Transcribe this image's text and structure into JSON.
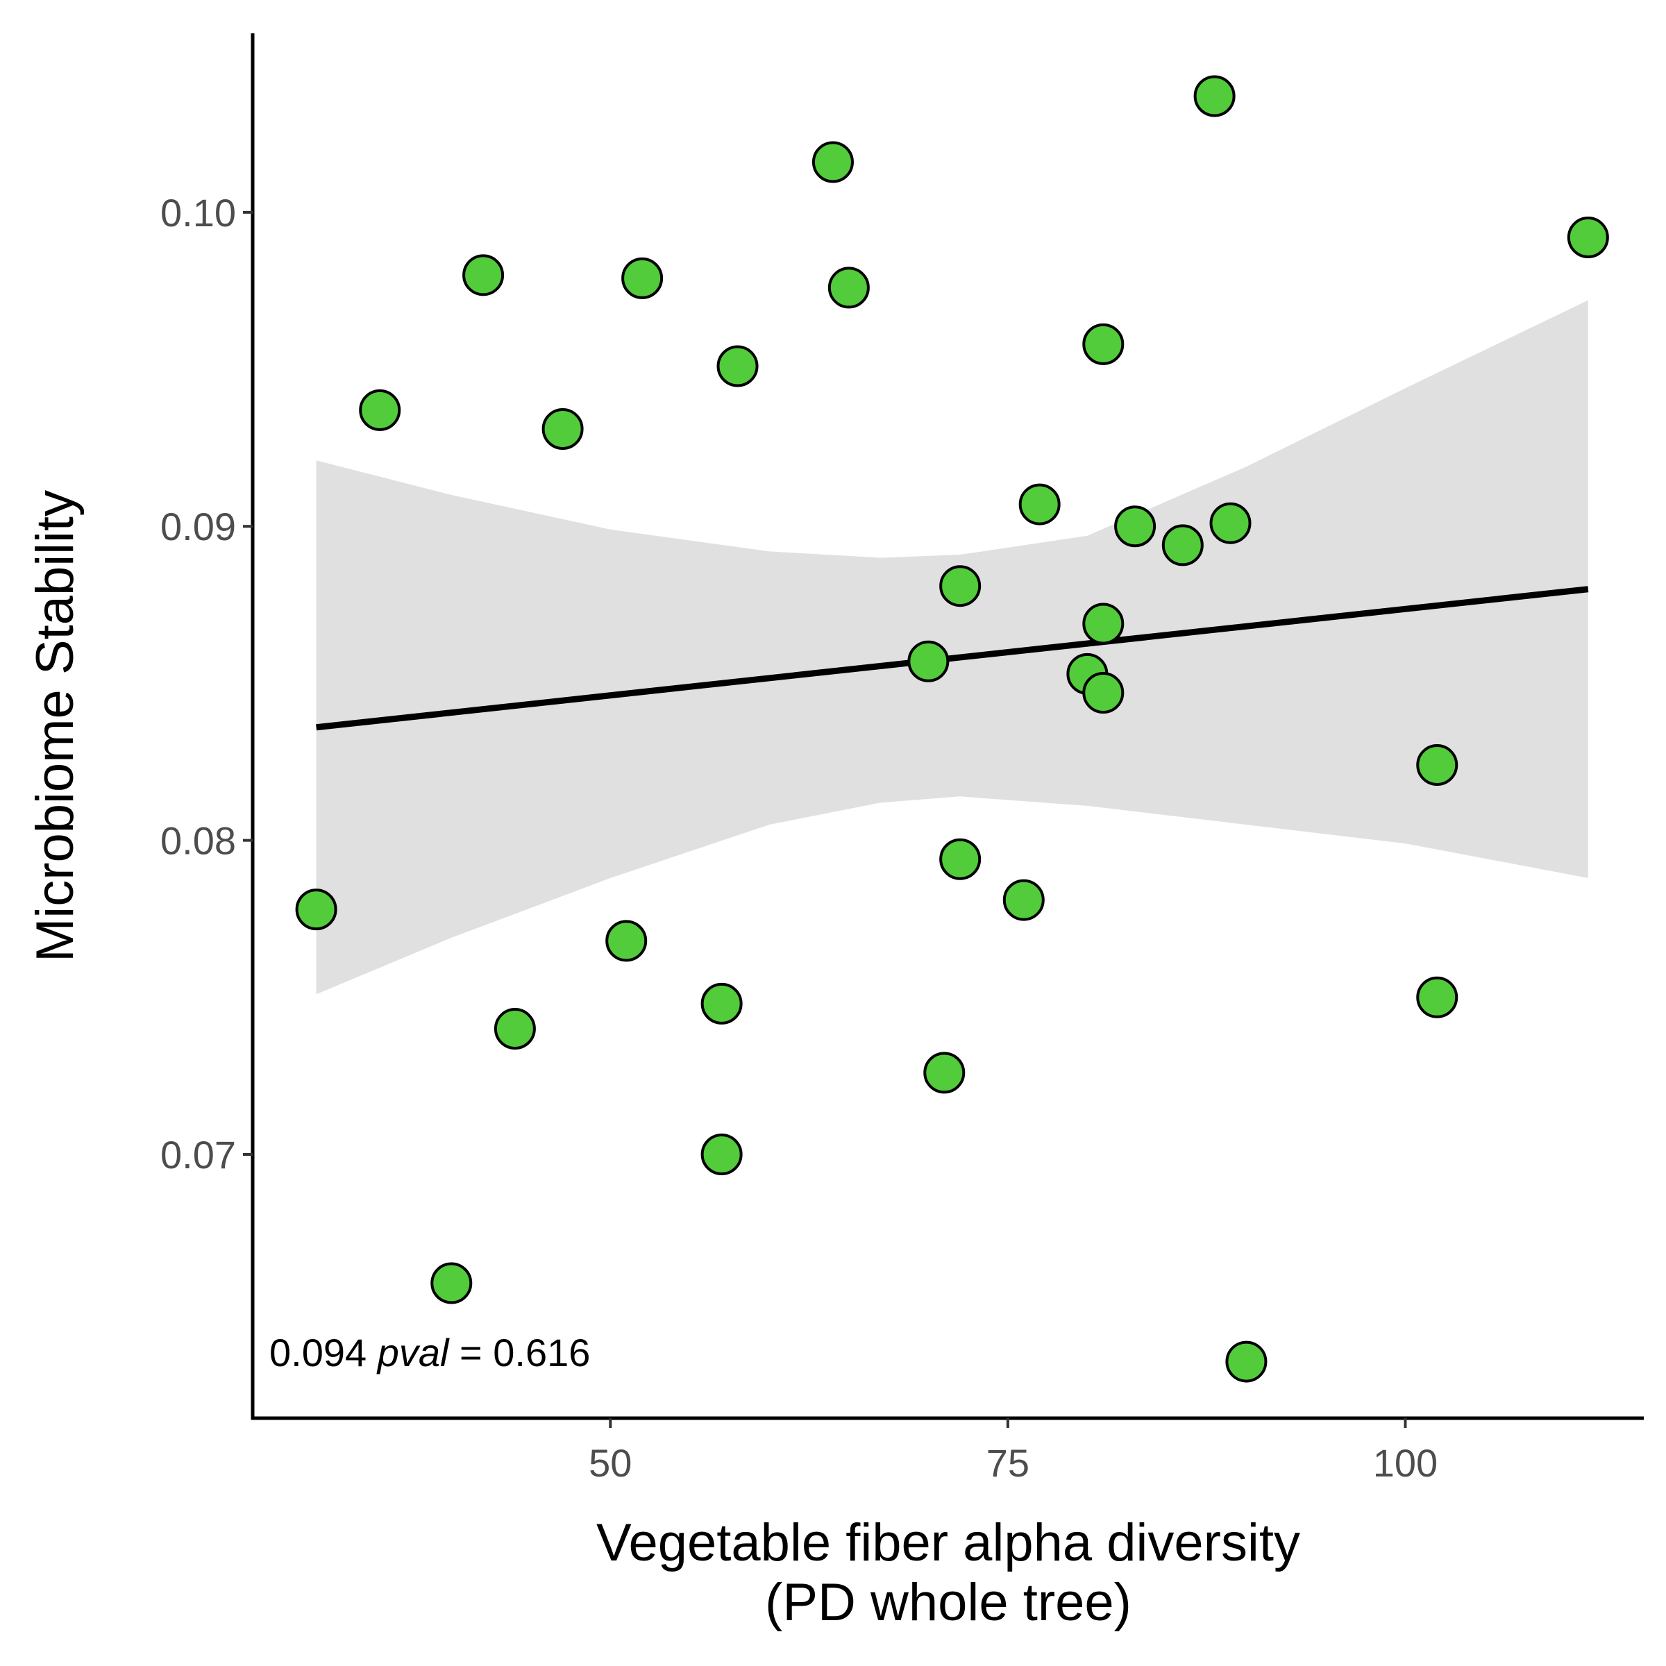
{
  "chart_data": {
    "type": "scatter",
    "title": "",
    "xlabel_lines": [
      "Vegetable fiber alpha diversity",
      "(PD whole tree)"
    ],
    "ylabel": "Microbiome Stability",
    "xlim": [
      27.5,
      115
    ],
    "ylim": [
      0.0616,
      0.1057
    ],
    "x_ticks": [
      {
        "value": 50,
        "label": "50"
      },
      {
        "value": 75,
        "label": "75"
      },
      {
        "value": 100,
        "label": "100"
      }
    ],
    "y_ticks": [
      {
        "value": 0.07,
        "label": "0.07"
      },
      {
        "value": 0.08,
        "label": "0.08"
      },
      {
        "value": 0.09,
        "label": "0.09"
      },
      {
        "value": 0.1,
        "label": "0.10"
      }
    ],
    "grid": false,
    "colors": {
      "point_fill": "#52cc3b",
      "point_stroke": "#000000",
      "ribbon": "#e0e0e0",
      "line": "#000000"
    },
    "points": [
      {
        "x": 31.5,
        "y": 0.0778
      },
      {
        "x": 35.5,
        "y": 0.0937
      },
      {
        "x": 40.0,
        "y": 0.0659
      },
      {
        "x": 42.0,
        "y": 0.098
      },
      {
        "x": 44.0,
        "y": 0.074
      },
      {
        "x": 47.0,
        "y": 0.0931
      },
      {
        "x": 51.0,
        "y": 0.0768
      },
      {
        "x": 52.0,
        "y": 0.0979
      },
      {
        "x": 57.0,
        "y": 0.0748
      },
      {
        "x": 57.0,
        "y": 0.07
      },
      {
        "x": 58.0,
        "y": 0.0951
      },
      {
        "x": 64.0,
        "y": 0.1016
      },
      {
        "x": 65.0,
        "y": 0.0976
      },
      {
        "x": 70.0,
        "y": 0.0857
      },
      {
        "x": 71.0,
        "y": 0.0726
      },
      {
        "x": 72.0,
        "y": 0.0881
      },
      {
        "x": 72.0,
        "y": 0.0794
      },
      {
        "x": 76.0,
        "y": 0.0781
      },
      {
        "x": 77.0,
        "y": 0.0907
      },
      {
        "x": 80.0,
        "y": 0.0853
      },
      {
        "x": 81.0,
        "y": 0.0958
      },
      {
        "x": 81.0,
        "y": 0.0869
      },
      {
        "x": 81.0,
        "y": 0.0847
      },
      {
        "x": 83.0,
        "y": 0.09
      },
      {
        "x": 86.0,
        "y": 0.0894
      },
      {
        "x": 88.0,
        "y": 0.1037
      },
      {
        "x": 89.0,
        "y": 0.0901
      },
      {
        "x": 90.0,
        "y": 0.0634
      },
      {
        "x": 102.0,
        "y": 0.0824
      },
      {
        "x": 102.0,
        "y": 0.075
      },
      {
        "x": 111.5,
        "y": 0.0992
      }
    ],
    "regression": {
      "x_range": [
        31.5,
        111.5
      ],
      "y_range": [
        0.0836,
        0.088
      ],
      "ci_x": [
        31.5,
        40,
        50,
        60,
        67,
        72,
        80,
        90,
        100,
        111.5
      ],
      "ci_upper": [
        0.0921,
        0.091,
        0.0899,
        0.0892,
        0.089,
        0.0891,
        0.0897,
        0.0919,
        0.0944,
        0.0972
      ],
      "ci_lower": [
        0.0751,
        0.0769,
        0.0788,
        0.0805,
        0.0812,
        0.0814,
        0.0811,
        0.0805,
        0.0799,
        0.0788
      ]
    },
    "annotation": {
      "prefix": "0.094 ",
      "italic": "pval",
      "suffix": " = 0.616"
    }
  }
}
